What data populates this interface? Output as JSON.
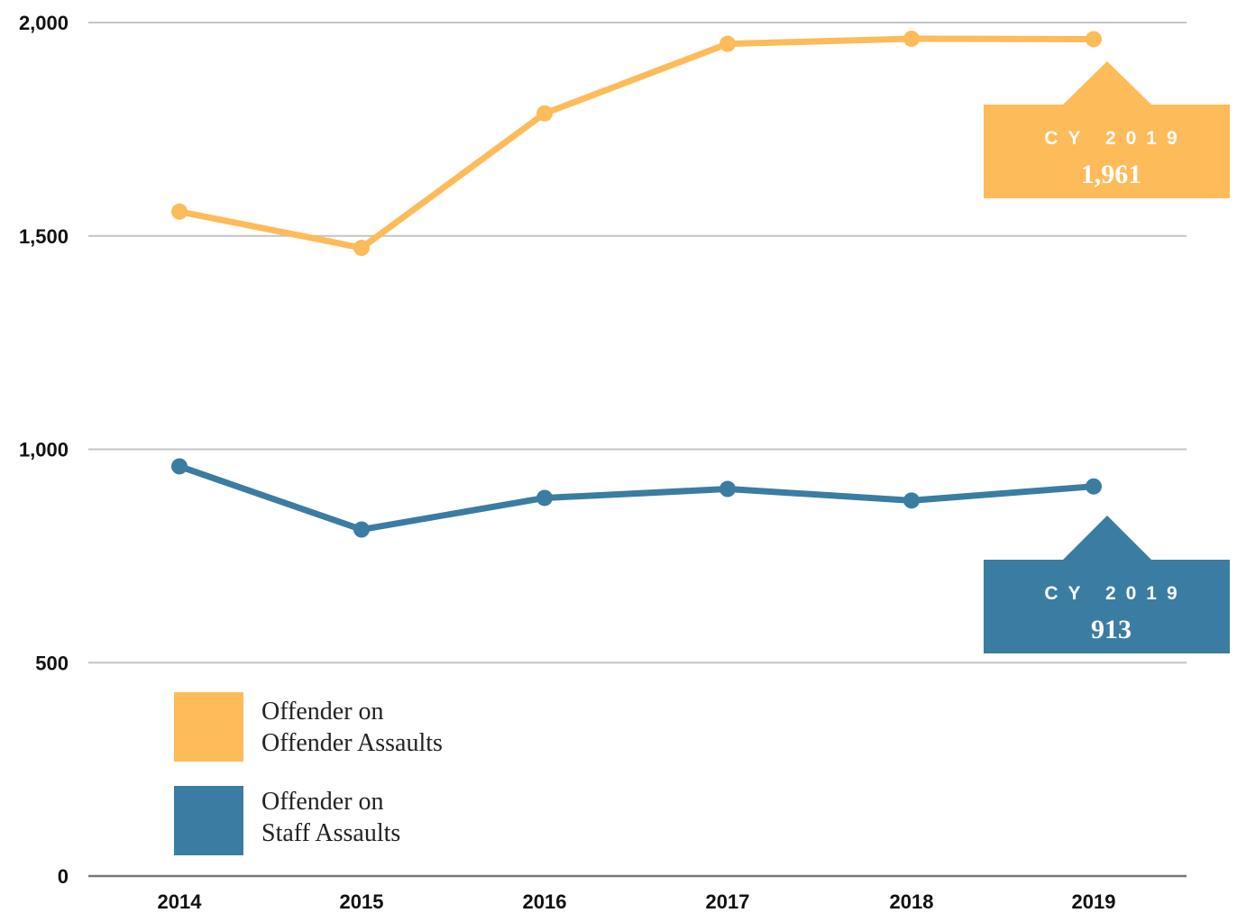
{
  "chart_data": {
    "type": "line",
    "categories": [
      "2014",
      "2015",
      "2016",
      "2017",
      "2018",
      "2019"
    ],
    "series": [
      {
        "name": "Offender on Offender Assaults",
        "legend_lines": [
          "Offender on",
          "Offender Assaults"
        ],
        "color": "#FDBB59",
        "values": [
          1557,
          1472,
          1787,
          1950,
          1962,
          1961
        ]
      },
      {
        "name": "Offender on Staff Assaults",
        "legend_lines": [
          "Offender on",
          "Staff Assaults"
        ],
        "color": "#3B7CA2",
        "values": [
          960,
          812,
          886,
          907,
          880,
          913
        ]
      }
    ],
    "yticks": [
      "0",
      "500",
      "1,000",
      "1,500",
      "2,000"
    ],
    "ylim": [
      0,
      2000
    ],
    "grid": true,
    "legend_position": "bottom-left",
    "annotations": [
      {
        "label": "CY 2019",
        "value": "1,961",
        "series": 0,
        "color": "#FDBB59"
      },
      {
        "label": "CY 2019",
        "value": "913",
        "series": 1,
        "color": "#3B7CA2"
      }
    ]
  }
}
